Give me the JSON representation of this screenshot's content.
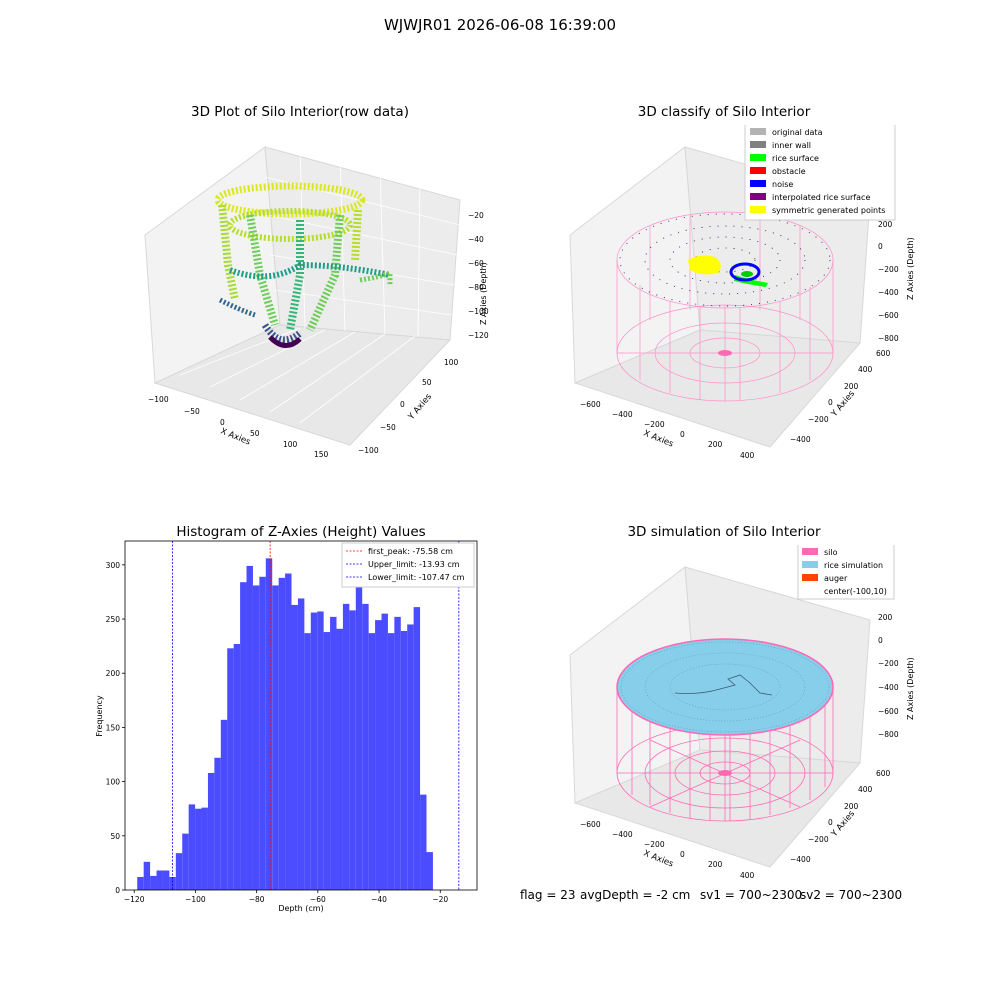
{
  "suptitle": "WJWJR01 2026-06-08 16:39:00",
  "panels": {
    "raw": {
      "title": "3D Plot of Silo Interior(row data)",
      "xlabel": "X Axies",
      "ylabel": "Y Axies",
      "zlabel": "Z Axies (Depth)",
      "xticks": [
        "−100",
        "−50",
        "0",
        "50",
        "100",
        "150"
      ],
      "yticks": [
        "−100",
        "−50",
        "0",
        "50",
        "100"
      ],
      "zticks": [
        "−20",
        "−40",
        "−60",
        "−80",
        "−100",
        "−120"
      ]
    },
    "classify": {
      "title": "3D classify of Silo Interior",
      "xlabel": "X Axies",
      "ylabel": "Y Axies",
      "zlabel": "Z Axies (Depth)",
      "xticks": [
        "−600",
        "−400",
        "−200",
        "0",
        "200",
        "400"
      ],
      "yticks": [
        "−400",
        "−200",
        "0",
        "200",
        "400",
        "600"
      ],
      "zticks": [
        "200",
        "0",
        "−200",
        "−400",
        "−600",
        "−800"
      ],
      "legend": [
        {
          "label": "original data",
          "color": "#b3b3b3"
        },
        {
          "label": "inner wall",
          "color": "#808080"
        },
        {
          "label": "rice surface",
          "color": "#00ff00"
        },
        {
          "label": "obstacle",
          "color": "#ff0000"
        },
        {
          "label": "noise",
          "color": "#0000ff"
        },
        {
          "label": "interpolated rice surface",
          "color": "#800080"
        },
        {
          "label": "symmetric generated points",
          "color": "#ffff00"
        }
      ]
    },
    "simulation": {
      "title": "3D simulation of Silo Interior",
      "xlabel": "X Axies",
      "ylabel": "Y Axies",
      "zlabel": "Z Axies (Depth)",
      "xticks": [
        "−600",
        "−400",
        "−200",
        "0",
        "200",
        "400"
      ],
      "yticks": [
        "−400",
        "−200",
        "0",
        "200",
        "400",
        "600"
      ],
      "zticks": [
        "200",
        "0",
        "−200",
        "−400",
        "−600",
        "−800"
      ],
      "legend": [
        {
          "label": "silo",
          "color": "#ff69b4"
        },
        {
          "label": "rice simulation",
          "color": "#87ceeb"
        },
        {
          "label": "auger",
          "color": "#ff4500"
        },
        {
          "label": "center(-100,10)",
          "color": ""
        }
      ]
    }
  },
  "status": {
    "flag": "flag = 23",
    "avg_depth": "avgDepth = -2 cm",
    "sv1": "sv1 = 700~2300",
    "sv2": "sv2 = 700~2300"
  },
  "chart_data": {
    "type": "bar",
    "title": "Histogram of Z-Axies (Height) Values",
    "xlabel": "Depth (cm)",
    "ylabel": "Frequency",
    "xlim": [
      -123,
      -8
    ],
    "ylim": [
      0,
      322
    ],
    "xticks": [
      -120,
      -100,
      -80,
      -60,
      -40,
      -20
    ],
    "xtick_labels": [
      "−120",
      "−100",
      "−80",
      "−60",
      "−40",
      "−20"
    ],
    "yticks": [
      0,
      50,
      100,
      150,
      200,
      250,
      300
    ],
    "bar_color": "#4c4cff",
    "bin_start": -119.0,
    "bin_width": 2.1,
    "values": [
      12,
      26,
      13,
      18,
      18,
      12,
      34,
      52,
      79,
      75,
      76,
      108,
      122,
      157,
      223,
      227,
      284,
      299,
      281,
      289,
      306,
      281,
      288,
      292,
      263,
      269,
      237,
      256,
      257,
      238,
      252,
      241,
      264,
      258,
      281,
      264,
      237,
      249,
      255,
      237,
      252,
      239,
      245,
      261,
      88,
      35
    ],
    "vlines": [
      {
        "label": "first_peak: -75.58 cm",
        "x": -75.58,
        "color": "#ff0000"
      },
      {
        "label": "Upper_limit: -13.93 cm",
        "x": -13.93,
        "color": "#0000ff"
      },
      {
        "label": "Lower_limit: -107.47 cm",
        "x": -107.47,
        "color": "#0000ff"
      }
    ]
  }
}
